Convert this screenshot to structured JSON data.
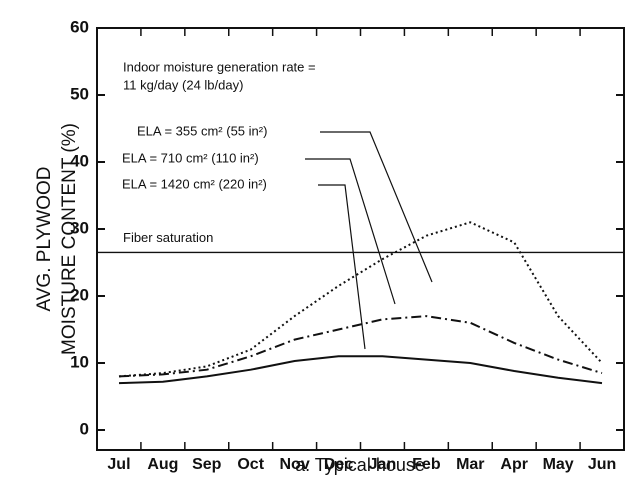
{
  "chart_data": {
    "type": "line",
    "xlabel": "a. Typical house",
    "ylabel": [
      "AVG. PLYWOOD",
      "MOISTURE CONTENT (%)"
    ],
    "categories": [
      "Jul",
      "Aug",
      "Sep",
      "Oct",
      "Nov",
      "Dec",
      "Jan",
      "Feb",
      "Mar",
      "Apr",
      "May",
      "Jun"
    ],
    "series": [
      {
        "name": "ELA = 355 cm² (55 in²)",
        "color": "#111111",
        "style": "dotted",
        "values": [
          8,
          8.5,
          9.5,
          12,
          17,
          21.5,
          25.5,
          29,
          31,
          28,
          17,
          10
        ]
      },
      {
        "name": "ELA = 710 cm² (110 in²)",
        "color": "#111111",
        "style": "dashdot",
        "values": [
          8,
          8.3,
          9,
          11,
          13.5,
          15,
          16.5,
          17,
          16,
          13,
          10.5,
          8.5
        ]
      },
      {
        "name": "ELA = 1420 cm² (220 in²)",
        "color": "#111111",
        "style": "solid",
        "values": [
          7,
          7.2,
          8,
          9,
          10.3,
          11,
          11,
          10.5,
          10,
          8.8,
          7.8,
          7
        ]
      }
    ],
    "annotations": [
      "Indoor moisture generation rate =",
      "11 kg/day (24 lb/day)"
    ],
    "reference_line": {
      "label": "Fiber saturation",
      "value": 26.5
    },
    "ylim": [
      0,
      60
    ],
    "yticks": [
      0,
      10,
      20,
      30,
      40,
      50,
      60
    ]
  }
}
